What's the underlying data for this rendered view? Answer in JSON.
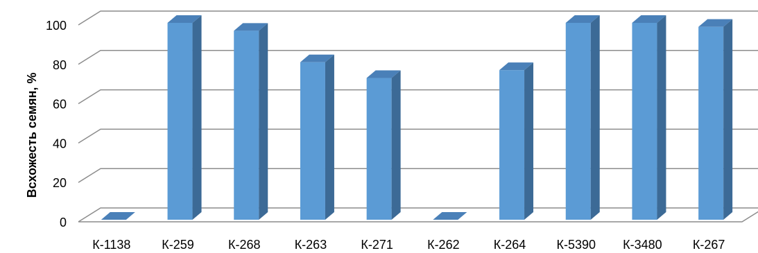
{
  "chart_data": {
    "type": "bar",
    "style": "3d-column",
    "title": "",
    "xlabel": "",
    "ylabel": "Всхожесть семян, %",
    "ylim": [
      0,
      100
    ],
    "yticks": [
      0,
      20,
      40,
      60,
      80,
      100
    ],
    "grid": true,
    "legend": "none",
    "categories": [
      "К-1138",
      "К-259",
      "К-268",
      "К-263",
      "К-271",
      "К-262",
      "К-264",
      "К-5390",
      "К-3480",
      "К-267"
    ],
    "values": [
      0,
      100,
      96,
      80,
      72,
      0,
      76,
      100,
      100,
      98
    ],
    "colors": {
      "bar_front": "#5B9BD5",
      "bar_side": "#3C6A96",
      "bar_top": "#4A80B8",
      "gridline": "#8C8C8C"
    }
  }
}
